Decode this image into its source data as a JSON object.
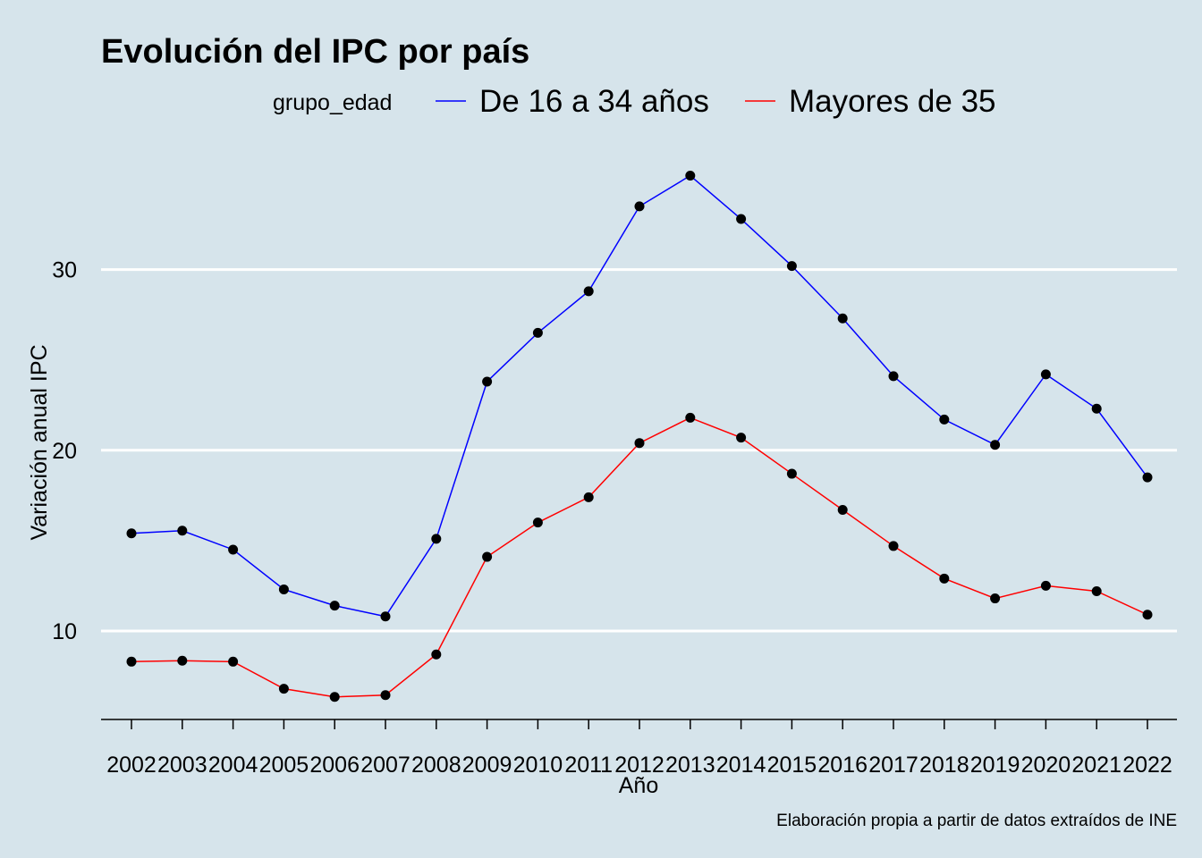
{
  "chart_data": {
    "type": "line",
    "title": "Evolución del IPC por país",
    "xlabel": "Año",
    "ylabel": "Variación anual IPC",
    "caption": "Elaboración propia a partir de datos extraídos de INE",
    "legend": {
      "title": "grupo_edad",
      "position": "top"
    },
    "x": [
      "2002",
      "2003",
      "2004",
      "2005",
      "2006",
      "2007",
      "2008",
      "2009",
      "2010",
      "2011",
      "2012",
      "2013",
      "2014",
      "2015",
      "2016",
      "2017",
      "2018",
      "2019",
      "2020",
      "2021",
      "2022"
    ],
    "y_ticks": [
      10,
      20,
      30
    ],
    "ylim": [
      5.1,
      37.5
    ],
    "grid": "horizontal major only",
    "series": [
      {
        "name": "De 16 a 34 años",
        "color": "#0000ff",
        "values": [
          15.4,
          15.55,
          14.5,
          12.3,
          11.4,
          10.8,
          15.1,
          23.8,
          26.5,
          28.8,
          33.5,
          35.2,
          32.8,
          30.2,
          27.3,
          24.1,
          21.7,
          20.3,
          24.2,
          22.3,
          18.5
        ]
      },
      {
        "name": "Mayores de 35",
        "color": "#ff0000",
        "values": [
          8.3,
          8.35,
          8.3,
          6.8,
          6.35,
          6.45,
          8.7,
          14.1,
          16.0,
          17.4,
          20.4,
          21.8,
          20.7,
          18.7,
          16.7,
          14.7,
          12.9,
          11.8,
          12.5,
          12.2,
          10.9
        ]
      }
    ],
    "marker_color": "#000000",
    "background_color": "#d6e4eb",
    "gridline_color": "#ffffff"
  }
}
